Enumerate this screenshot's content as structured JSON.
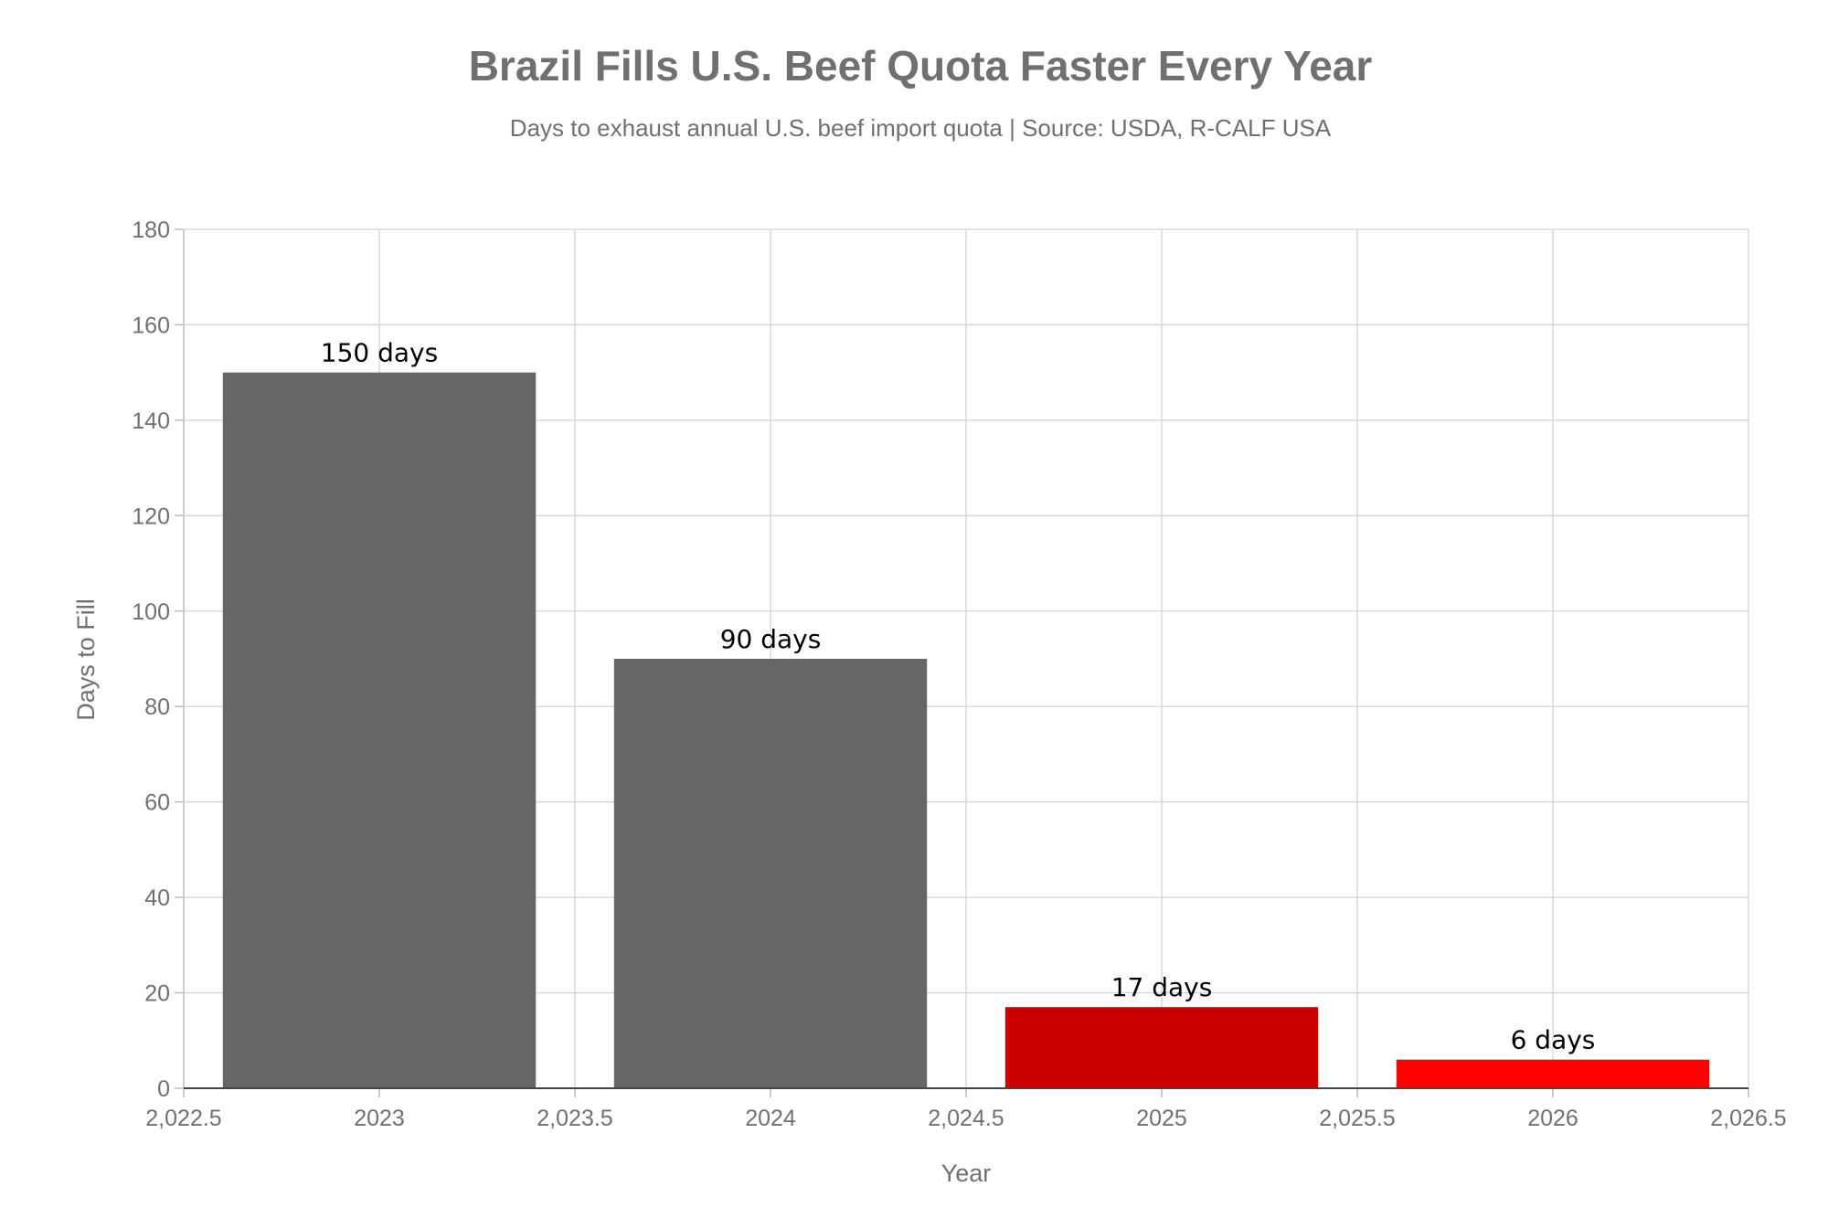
{
  "chart_data": {
    "type": "bar",
    "title": "Brazil Fills U.S. Beef Quota Faster Every Year",
    "subtitle": "Days to exhaust annual U.S. beef import quota | Source: USDA, R-CALF USA",
    "xlabel": "Year",
    "ylabel": "Days to Fill",
    "x": [
      2023,
      2024,
      2025,
      2026
    ],
    "values": [
      150,
      90,
      17,
      6
    ],
    "data_labels": [
      "150 days",
      "90 days",
      "17 days",
      "6 days"
    ],
    "bar_colors": [
      "#666666",
      "#666666",
      "#cc0000",
      "#ff0000"
    ],
    "bar_width": 0.8,
    "xlim": [
      2022.5,
      2026.5
    ],
    "ylim": [
      0,
      180
    ],
    "x_ticks": [
      2022.5,
      2023,
      2023.5,
      2024,
      2024.5,
      2025,
      2025.5,
      2026,
      2026.5
    ],
    "x_tick_labels": [
      "2,022.5",
      "2023",
      "2,023.5",
      "2024",
      "2,024.5",
      "2025",
      "2,025.5",
      "2026",
      "2,026.5"
    ],
    "y_ticks": [
      0,
      20,
      40,
      60,
      80,
      100,
      120,
      140,
      160,
      180
    ],
    "y_tick_labels": [
      "0",
      "20",
      "40",
      "60",
      "80",
      "100",
      "120",
      "140",
      "160",
      "180"
    ],
    "grid": true,
    "legend": "none"
  }
}
